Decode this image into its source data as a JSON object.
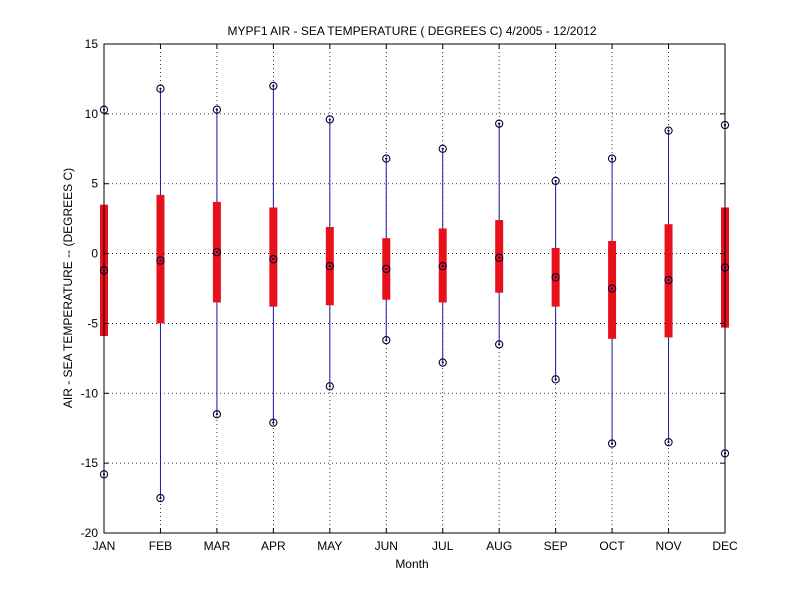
{
  "chart_data": {
    "type": "boxplot",
    "title": "MYPF1  AIR - SEA TEMPERATURE ( DEGREES C) 4/2005 - 12/2012",
    "xlabel": "Month",
    "ylabel": "AIR - SEA TEMPERATURE -- (DEGREES C)",
    "categories": [
      "JAN",
      "FEB",
      "MAR",
      "APR",
      "MAY",
      "JUN",
      "JUL",
      "AUG",
      "SEP",
      "OCT",
      "NOV",
      "DEC"
    ],
    "ylim": [
      -20,
      15
    ],
    "yticks": [
      -20,
      -15,
      -10,
      -5,
      0,
      5,
      10,
      15
    ],
    "grid": true,
    "colors": {
      "whisker": "#1a1aa6",
      "box": "#e8111b",
      "marker": "#000033"
    },
    "series": [
      {
        "max": 10.3,
        "q3": 3.5,
        "median": -1.2,
        "q1": -5.9,
        "min": -15.8
      },
      {
        "max": 11.8,
        "q3": 4.2,
        "median": -0.5,
        "q1": -5.0,
        "min": -17.5
      },
      {
        "max": 10.3,
        "q3": 3.7,
        "median": 0.1,
        "q1": -3.5,
        "min": -11.5
      },
      {
        "max": 12.0,
        "q3": 3.3,
        "median": -0.4,
        "q1": -3.8,
        "min": -12.1
      },
      {
        "max": 9.6,
        "q3": 1.9,
        "median": -0.9,
        "q1": -3.7,
        "min": -9.5
      },
      {
        "max": 6.8,
        "q3": 1.1,
        "median": -1.1,
        "q1": -3.3,
        "min": -6.2
      },
      {
        "max": 7.5,
        "q3": 1.8,
        "median": -0.9,
        "q1": -3.5,
        "min": -7.8
      },
      {
        "max": 9.3,
        "q3": 2.4,
        "median": -0.3,
        "q1": -2.8,
        "min": -6.5
      },
      {
        "max": 5.2,
        "q3": 0.4,
        "median": -1.7,
        "q1": -3.8,
        "min": -9.0
      },
      {
        "max": 6.8,
        "q3": 0.9,
        "median": -2.5,
        "q1": -6.1,
        "min": -13.6
      },
      {
        "max": 8.8,
        "q3": 2.1,
        "median": -1.9,
        "q1": -6.0,
        "min": -13.5
      },
      {
        "max": 9.2,
        "q3": 3.3,
        "median": -1.0,
        "q1": -5.3,
        "min": -14.3
      }
    ]
  }
}
